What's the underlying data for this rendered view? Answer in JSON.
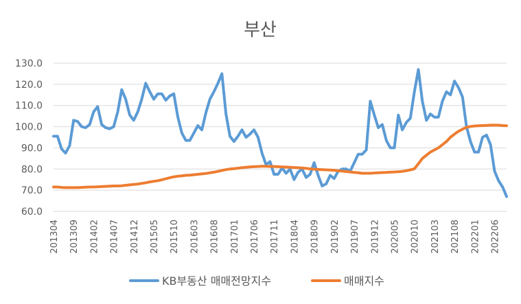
{
  "chart_data": {
    "type": "line",
    "title": "부산",
    "xlabel": "",
    "ylabel": "",
    "ylim": [
      60,
      130
    ],
    "y_ticks": [
      "60.0",
      "70.0",
      "80.0",
      "90.0",
      "100.0",
      "110.0",
      "120.0",
      "130.0"
    ],
    "grid": "horizontal",
    "legend_position": "bottom",
    "x_tick_labels": [
      "201304",
      "201309",
      "201402",
      "201407",
      "201412",
      "201505",
      "201510",
      "201603",
      "201608",
      "201701",
      "201706",
      "201711",
      "201804",
      "201809",
      "201902",
      "201907",
      "201912",
      "202005",
      "202010",
      "202103",
      "202108",
      "202201",
      "202206"
    ],
    "x_tick_every_months": 5,
    "x_start": "201304",
    "x_end": "202210",
    "series": [
      {
        "name": "KB부동산 매매전망지수",
        "color": "#5B9BD5",
        "values": [
          95.5,
          95.5,
          89.5,
          87.5,
          91,
          103,
          102.5,
          100,
          99.5,
          101,
          107,
          109.5,
          101,
          99.5,
          99,
          100,
          107,
          117.5,
          113,
          105.5,
          103,
          107,
          113,
          120.5,
          116.5,
          113,
          115.5,
          115.5,
          112.5,
          114.5,
          115.5,
          104.5,
          97,
          93.5,
          93.5,
          97,
          100.5,
          98.5,
          106.5,
          113,
          116.5,
          120.5,
          125,
          106,
          95.5,
          93,
          95.5,
          98.5,
          95,
          96.5,
          98.5,
          95,
          87.5,
          82,
          83.5,
          77.5,
          77.5,
          80.5,
          78,
          80,
          75,
          78.5,
          80,
          76,
          77.5,
          83,
          77,
          72,
          73,
          77,
          75.5,
          79,
          80,
          80,
          79,
          83,
          87,
          87,
          89,
          112,
          105.5,
          99.5,
          101,
          93.5,
          90,
          90,
          105.5,
          98.5,
          102,
          104,
          116.5,
          127,
          112,
          103,
          106,
          104.5,
          104.5,
          112,
          116.5,
          115,
          121.5,
          118.5,
          114,
          100,
          93,
          88,
          88,
          95,
          96,
          91.5,
          79,
          74.5,
          71.5,
          67
        ]
      },
      {
        "name": "매매지수",
        "color": "#ED7D31",
        "values": [
          71.5,
          71.5,
          71.3,
          71.2,
          71.2,
          71.2,
          71.2,
          71.3,
          71.4,
          71.5,
          71.5,
          71.6,
          71.7,
          71.8,
          71.9,
          72,
          72,
          72.1,
          72.3,
          72.5,
          72.7,
          72.9,
          73.2,
          73.5,
          73.9,
          74.2,
          74.5,
          74.9,
          75.4,
          75.9,
          76.3,
          76.6,
          76.8,
          77,
          77.1,
          77.3,
          77.5,
          77.7,
          77.9,
          78.2,
          78.5,
          78.9,
          79.3,
          79.7,
          80,
          80.2,
          80.4,
          80.6,
          80.8,
          81,
          81.1,
          81.2,
          81.3,
          81.3,
          81.2,
          81.2,
          81.1,
          81,
          80.9,
          80.8,
          80.7,
          80.6,
          80.5,
          80.3,
          80.1,
          79.9,
          79.8,
          79.7,
          79.6,
          79.5,
          79.4,
          79.2,
          79,
          78.8,
          78.6,
          78.4,
          78.2,
          78,
          78,
          78,
          78.1,
          78.2,
          78.3,
          78.4,
          78.5,
          78.6,
          78.7,
          78.9,
          79.2,
          79.6,
          80.1,
          82.5,
          85,
          86.5,
          88,
          89,
          90,
          91.5,
          93,
          95,
          96.5,
          97.8,
          98.8,
          99.7,
          100.1,
          100.3,
          100.4,
          100.5,
          100.6,
          100.7,
          100.7,
          100.7,
          100.5,
          100.4
        ]
      }
    ]
  }
}
